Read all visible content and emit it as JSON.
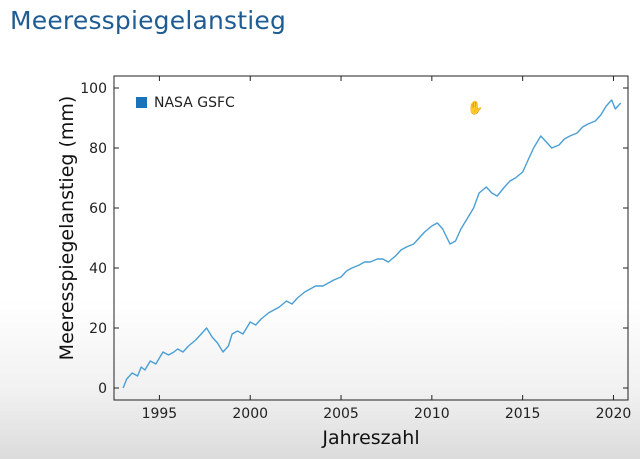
{
  "page": {
    "title": "Meeresspiegelanstieg"
  },
  "chart_data": {
    "type": "line",
    "xlabel": "Jahreszahl",
    "ylabel": "Meeresspiegelanstieg  (mm)",
    "xlim": [
      1992.5,
      2020.8
    ],
    "ylim": [
      -4,
      104
    ],
    "xticks": [
      1995,
      2000,
      2005,
      2010,
      2015,
      2020
    ],
    "yticks": [
      0,
      20,
      40,
      60,
      80,
      100
    ],
    "legend": {
      "placement": "top-left"
    },
    "grid": false,
    "series": [
      {
        "name": "NASA GSFC",
        "color": "#4a9fd4",
        "x": [
          1993.0,
          1993.2,
          1993.5,
          1993.8,
          1994.0,
          1994.2,
          1994.5,
          1994.8,
          1995.0,
          1995.2,
          1995.5,
          1995.8,
          1996.0,
          1996.3,
          1996.6,
          1997.0,
          1997.3,
          1997.6,
          1997.9,
          1998.2,
          1998.5,
          1998.8,
          1999.0,
          1999.3,
          1999.6,
          2000.0,
          2000.3,
          2000.6,
          2001.0,
          2001.3,
          2001.6,
          2002.0,
          2002.3,
          2002.6,
          2003.0,
          2003.3,
          2003.6,
          2004.0,
          2004.3,
          2004.6,
          2005.0,
          2005.3,
          2005.6,
          2006.0,
          2006.3,
          2006.6,
          2007.0,
          2007.3,
          2007.6,
          2008.0,
          2008.3,
          2008.6,
          2009.0,
          2009.3,
          2009.6,
          2010.0,
          2010.3,
          2010.6,
          2011.0,
          2011.3,
          2011.6,
          2012.0,
          2012.3,
          2012.6,
          2013.0,
          2013.3,
          2013.6,
          2014.0,
          2014.3,
          2014.6,
          2015.0,
          2015.3,
          2015.6,
          2016.0,
          2016.3,
          2016.6,
          2017.0,
          2017.3,
          2017.6,
          2018.0,
          2018.3,
          2018.6,
          2019.0,
          2019.3,
          2019.6,
          2019.9,
          2020.1,
          2020.4
        ],
        "values": [
          0,
          3,
          5,
          4,
          7,
          6,
          9,
          8,
          10,
          12,
          11,
          12,
          13,
          12,
          14,
          16,
          18,
          20,
          17,
          15,
          12,
          14,
          18,
          19,
          18,
          22,
          21,
          23,
          25,
          26,
          27,
          29,
          28,
          30,
          32,
          33,
          34,
          34,
          35,
          36,
          37,
          39,
          40,
          41,
          42,
          42,
          43,
          43,
          42,
          44,
          46,
          47,
          48,
          50,
          52,
          54,
          55,
          53,
          48,
          49,
          53,
          57,
          60,
          65,
          67,
          65,
          64,
          67,
          69,
          70,
          72,
          76,
          80,
          84,
          82,
          80,
          81,
          83,
          84,
          85,
          87,
          88,
          89,
          91,
          94,
          96,
          93,
          95
        ]
      }
    ]
  }
}
